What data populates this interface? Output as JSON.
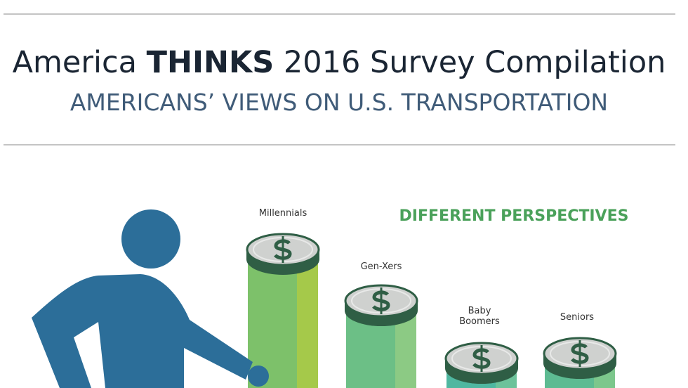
{
  "header": {
    "title": {
      "prefix": "America",
      "bold": "THINKS",
      "suffix": "2016 Survey Compilation"
    },
    "subtitle": "AMERICANS’ VIEWS ON U.S. TRANSPORTATION"
  },
  "section": {
    "heading": "DIFFERENT PERSPECTIVES",
    "groups": [
      "Millennials",
      "Gen-Xers",
      "Baby Boomers",
      "Seniors"
    ]
  }
}
